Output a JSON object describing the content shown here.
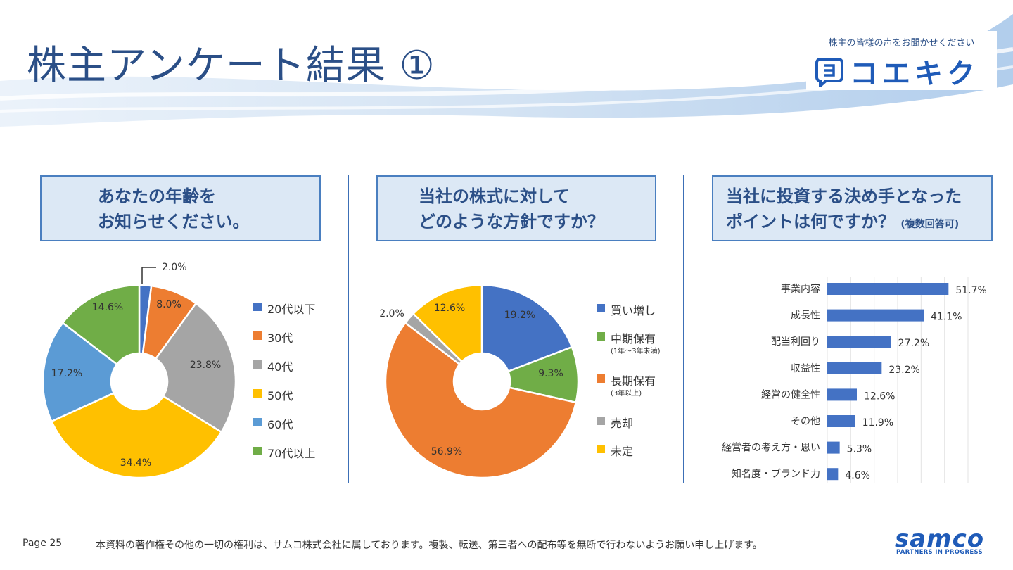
{
  "header": {
    "title": "株主アンケート結果 ①",
    "logo": {
      "tagline": "株主の皆様の声をお聞かせください",
      "name": "コエキク",
      "icon": "speech-bubble-icon"
    }
  },
  "panels": [
    {
      "question_line1": "あなたの年齢を",
      "question_line2": "お知らせください。",
      "question_note": ""
    },
    {
      "question_line1": "当社の株式に対して",
      "question_line2": "どのような方針ですか？",
      "question_note": ""
    },
    {
      "question_line1": "当社に投資する決め手となった",
      "question_line2": "ポイントは何ですか？",
      "question_note": "(複数回答可)"
    }
  ],
  "chart_data": [
    {
      "type": "pie",
      "donut": true,
      "categories": [
        "20代以下",
        "30代",
        "40代",
        "50代",
        "60代",
        "70代以上"
      ],
      "values": [
        2.0,
        8.0,
        23.8,
        34.4,
        17.2,
        14.6
      ],
      "labels": [
        "2.0%",
        "8.0%",
        "23.8%",
        "34.4%",
        "17.2%",
        "14.6%"
      ],
      "colors": [
        "#4472c4",
        "#ed7d31",
        "#a5a5a5",
        "#ffc000",
        "#5b9bd5",
        "#70ad47"
      ],
      "legend_position": "right"
    },
    {
      "type": "pie",
      "donut": true,
      "categories": [
        "買い増し",
        "中期保有",
        "長期保有",
        "売却",
        "未定"
      ],
      "category_notes": [
        "",
        "(1年〜3年未満)",
        "(3年以上)",
        "",
        ""
      ],
      "values": [
        19.2,
        9.3,
        56.9,
        2.0,
        12.6
      ],
      "labels": [
        "19.2%",
        "9.3%",
        "56.9%",
        "2.0%",
        "12.6%"
      ],
      "colors": [
        "#4472c4",
        "#70ad47",
        "#ed7d31",
        "#a5a5a5",
        "#ffc000"
      ],
      "legend_position": "right"
    },
    {
      "type": "bar",
      "orientation": "horizontal",
      "categories": [
        "事業内容",
        "成長性",
        "配当利回り",
        "収益性",
        "経営の健全性",
        "その他",
        "経営者の考え方・思い",
        "知名度・ブランド力"
      ],
      "values": [
        51.7,
        41.1,
        27.2,
        23.2,
        12.6,
        11.9,
        5.3,
        4.6
      ],
      "labels": [
        "51.7%",
        "41.1%",
        "27.2%",
        "23.2%",
        "12.6%",
        "11.9%",
        "5.3%",
        "4.6%"
      ],
      "color": "#4472c4",
      "xlim": [
        0,
        60
      ],
      "grid": true
    }
  ],
  "footer": {
    "page": "Page 25",
    "copyright": "本資料の著作権その他の一切の権利は、サムコ株式会社に属しております。複製、転送、第三者への配布等を無断で行わないようお願い申し上げます。",
    "brand": "samco",
    "brand_sub": "PARTNERS IN PROGRESS"
  }
}
